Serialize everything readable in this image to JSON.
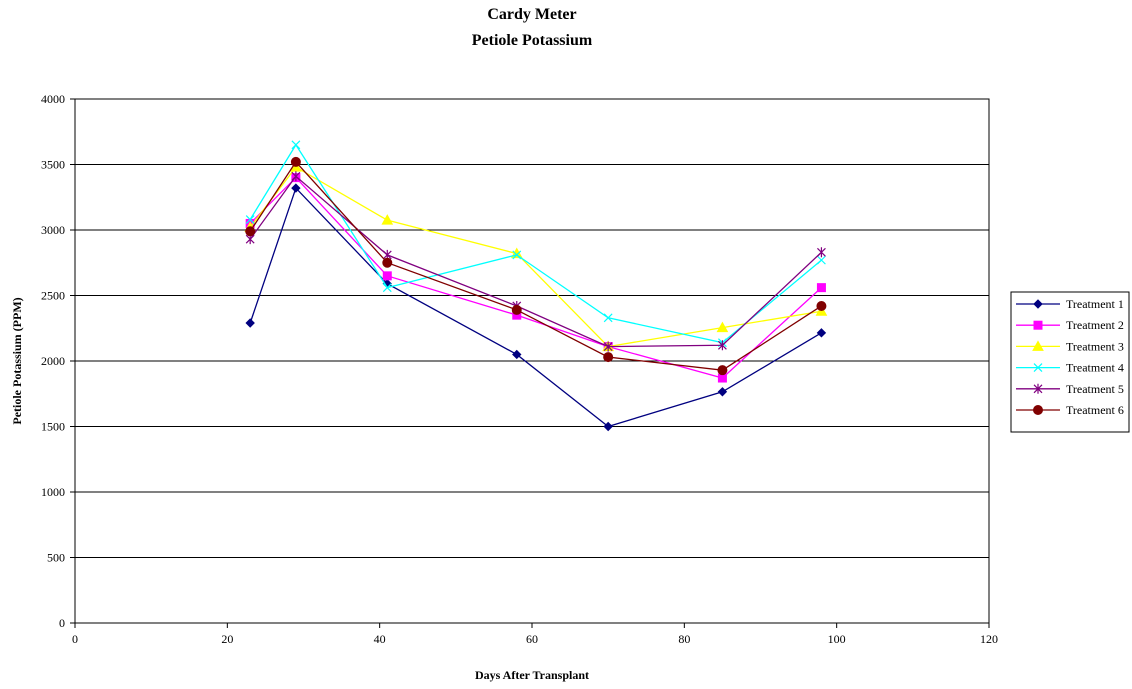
{
  "chart_data": {
    "type": "line",
    "title": "Cardy Meter",
    "subtitle": "Petiole Potassium",
    "xlabel": "Days After Transplant",
    "ylabel": "Petiole Potassium (PPM)",
    "xlim": [
      0,
      120
    ],
    "ylim": [
      0,
      4000
    ],
    "xticks": [
      0,
      20,
      40,
      60,
      80,
      100,
      120
    ],
    "yticks": [
      0,
      500,
      1000,
      1500,
      2000,
      2500,
      3000,
      3500,
      4000
    ],
    "grid": "horizontal major gridlines",
    "legend_position": "right",
    "x": [
      23,
      29,
      41,
      58,
      70,
      85,
      98
    ],
    "series": [
      {
        "name": "Treatment 1",
        "color": "#000080",
        "marker": "diamond",
        "values": [
          2290,
          3320,
          2590,
          2050,
          1500,
          1765,
          2215
        ]
      },
      {
        "name": "Treatment 2",
        "color": "#ff00ff",
        "marker": "square",
        "values": [
          3050,
          3400,
          2650,
          2350,
          2110,
          1870,
          2560
        ]
      },
      {
        "name": "Treatment 3",
        "color": "#ffff00",
        "marker": "triangle",
        "values": [
          3020,
          3480,
          3075,
          2820,
          2110,
          2255,
          2380
        ]
      },
      {
        "name": "Treatment 4",
        "color": "#00ffff",
        "marker": "x",
        "values": [
          3080,
          3650,
          2560,
          2810,
          2330,
          2140,
          2770
        ]
      },
      {
        "name": "Treatment 5",
        "color": "#800080",
        "marker": "star",
        "values": [
          2930,
          3410,
          2810,
          2420,
          2110,
          2120,
          2830
        ]
      },
      {
        "name": "Treatment 6",
        "color": "#800000",
        "marker": "circle",
        "values": [
          2990,
          3520,
          2750,
          2390,
          2030,
          1930,
          2420
        ]
      }
    ]
  }
}
